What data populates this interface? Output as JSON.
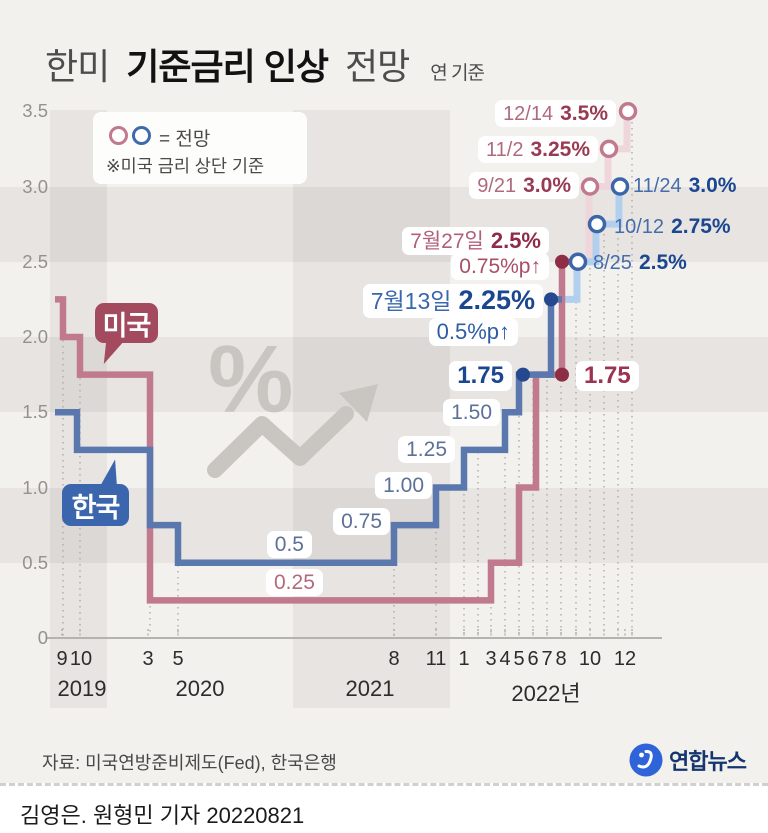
{
  "title": {
    "prefix": "한미",
    "main": "기준금리 인상",
    "suffix": "전망",
    "unit": "연 기준"
  },
  "legend": {
    "symbols_label": "= 전망",
    "note": "※미국 금리 상단 기준"
  },
  "watermark_symbol": "%",
  "y_axis": {
    "ticks": [
      "3.5",
      "3.0",
      "2.5",
      "2.0",
      "1.5",
      "1.0",
      "0.5",
      "0"
    ]
  },
  "x_axis": {
    "months": [
      "9",
      "10",
      "3",
      "5",
      "8",
      "11",
      "1",
      "3",
      "4",
      "5",
      "6",
      "7",
      "8",
      "10",
      "12"
    ],
    "years": [
      "2019",
      "2020",
      "2021",
      "2022년"
    ]
  },
  "series_labels": {
    "us": "미국",
    "kr": "한국"
  },
  "annotations": {
    "us_forecast": [
      {
        "date": "12/14",
        "value": "3.5%"
      },
      {
        "date": "11/2",
        "value": "3.25%"
      },
      {
        "date": "9/21",
        "value": "3.0%"
      }
    ],
    "kr_forecast": [
      {
        "date": "11/24",
        "value": "3.0%"
      },
      {
        "date": "10/12",
        "value": "2.75%"
      },
      {
        "date": "8/25",
        "value": "2.5%"
      }
    ],
    "us_event": {
      "date": "7월27일",
      "value": "2.5%",
      "change": "0.75%p↑",
      "level": "1.75"
    },
    "kr_event": {
      "date": "7월13일",
      "value": "2.25%",
      "change": "0.5%p↑",
      "level": "1.75"
    },
    "kr_steps": [
      "1.50",
      "1.25",
      "1.00",
      "0.75",
      "0.5"
    ],
    "us_step": "0.25"
  },
  "footer": {
    "source": "자료: 미국연방준비제도(Fed), 한국은행",
    "brand": "연합뉴스"
  },
  "credit": "김영은. 원형민 기자 20220821",
  "colors": {
    "us_line": "#c0798d",
    "us_accent": "#8e2e46",
    "us_forecast_line": "#eed6da",
    "kr_line": "#5a78ad",
    "kr_accent": "#26488e",
    "kr_forecast_line": "#b3cfee",
    "background": "#f3f1ee",
    "watermark": "#c9c6c2"
  },
  "chart_data": {
    "type": "line",
    "title": "한미 기준금리 인상 전망",
    "unit": "연 기준, %",
    "ylim": [
      0,
      3.5
    ],
    "y_ticks": [
      3.5,
      3.0,
      2.5,
      2.0,
      1.5,
      1.0,
      0.5,
      0
    ],
    "x_tick_labels": {
      "2019": [
        9,
        10
      ],
      "2020": [
        3,
        5
      ],
      "2021": [
        8,
        11
      ],
      "2022": [
        1,
        3,
        4,
        5,
        6,
        7,
        8,
        10,
        12
      ]
    },
    "legend_note": "forecast shown as open circles; US rate is upper bound",
    "series": [
      {
        "name": "미국",
        "actual": {
          "x": [
            "2019-08",
            "2019-09",
            "2019-10",
            "2020-03",
            "2022-03",
            "2022-05",
            "2022-06",
            "2022-07-27"
          ],
          "values": [
            2.25,
            2.0,
            1.75,
            0.25,
            0.5,
            1.0,
            1.75,
            2.5
          ]
        },
        "forecast": {
          "x": [
            "2022-09-21",
            "2022-11-02",
            "2022-12-14"
          ],
          "values": [
            3.0,
            3.25,
            3.5
          ]
        },
        "marked_points": [
          {
            "label": "1.75",
            "value": 1.75
          },
          {
            "label": "2.5%",
            "value": 2.5,
            "date": "7월27일",
            "change": "0.75%p↑"
          }
        ]
      },
      {
        "name": "한국",
        "actual": {
          "x": [
            "2019-07",
            "2019-10",
            "2020-03",
            "2020-05",
            "2021-08",
            "2021-11",
            "2022-01",
            "2022-04",
            "2022-05",
            "2022-07-13"
          ],
          "values": [
            1.5,
            1.25,
            0.75,
            0.5,
            0.75,
            1.0,
            1.25,
            1.5,
            1.75,
            2.25
          ]
        },
        "forecast": {
          "x": [
            "2022-08-25",
            "2022-10-12",
            "2022-11-24"
          ],
          "values": [
            2.5,
            2.75,
            3.0
          ]
        },
        "marked_points": [
          {
            "label": "1.75",
            "value": 1.75
          },
          {
            "label": "2.25%",
            "value": 2.25,
            "date": "7월13일",
            "change": "0.5%p↑"
          }
        ]
      }
    ]
  }
}
